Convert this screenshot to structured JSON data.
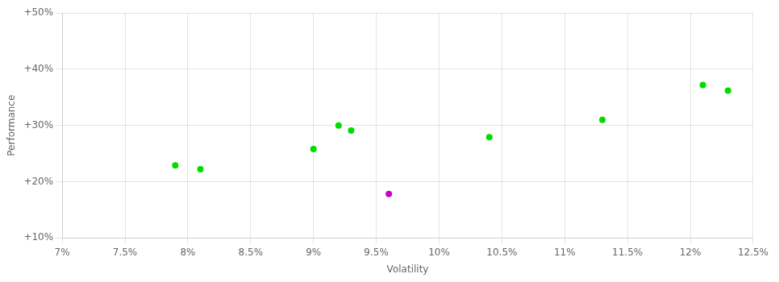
{
  "chart_data": {
    "type": "scatter",
    "xlabel": "Volatility",
    "ylabel": "Performance",
    "series": [
      {
        "color": "#00dd00",
        "x": [
          0.079,
          0.081,
          0.09,
          0.092,
          0.093,
          0.104,
          0.113,
          0.121,
          0.123
        ],
        "values": [
          0.229,
          0.222,
          0.258,
          0.3,
          0.291,
          0.279,
          0.31,
          0.372,
          0.362
        ]
      },
      {
        "color": "#cc00cc",
        "x": [
          0.096
        ],
        "values": [
          0.178
        ]
      }
    ],
    "xlim": [
      0.07,
      0.125
    ],
    "ylim": [
      0.1,
      0.5
    ],
    "xticks": [
      {
        "value": 0.07,
        "label": "7%"
      },
      {
        "value": 0.075,
        "label": "7.5%"
      },
      {
        "value": 0.08,
        "label": "8%"
      },
      {
        "value": 0.085,
        "label": "8.5%"
      },
      {
        "value": 0.09,
        "label": "9%"
      },
      {
        "value": 0.095,
        "label": "9.5%"
      },
      {
        "value": 0.1,
        "label": "10%"
      },
      {
        "value": 0.105,
        "label": "10.5%"
      },
      {
        "value": 0.11,
        "label": "11%"
      },
      {
        "value": 0.115,
        "label": "11.5%"
      },
      {
        "value": 0.12,
        "label": "12%"
      },
      {
        "value": 0.125,
        "label": "12.5%"
      }
    ],
    "yticks": [
      {
        "value": 0.1,
        "label": "+10%"
      },
      {
        "value": 0.2,
        "label": "+20%"
      },
      {
        "value": 0.3,
        "label": "+30%"
      },
      {
        "value": 0.4,
        "label": "+40%"
      },
      {
        "value": 0.5,
        "label": "+50%"
      }
    ],
    "grid": true
  }
}
